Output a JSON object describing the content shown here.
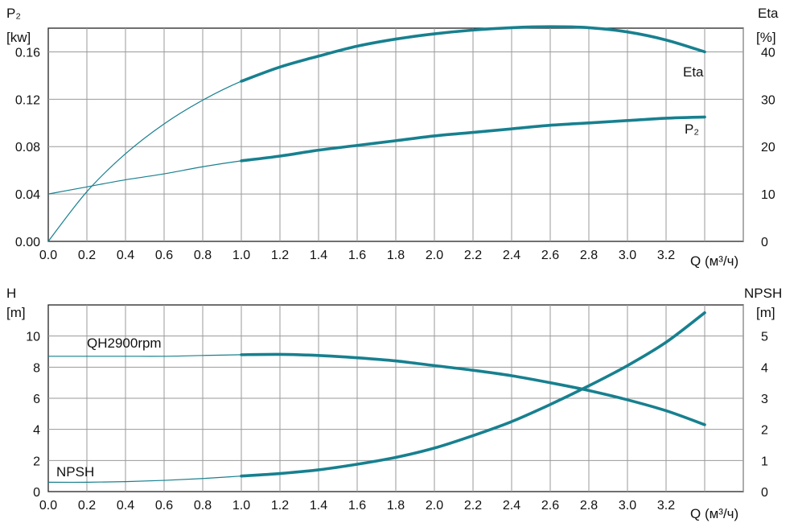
{
  "colors": {
    "curve": "#17808f",
    "grid": "#9a9a9a",
    "frame": "#222222"
  },
  "chart_data": [
    {
      "type": "line",
      "title": "",
      "xlabel": "Q (м³/ч)",
      "ylabel_left": "P₂ [kw]",
      "ylabel_left_parts": [
        "P₂",
        "[kw]"
      ],
      "ylabel_right": "Eta [%]",
      "ylabel_right_parts": [
        "Eta",
        "[%]"
      ],
      "xlim": [
        0,
        3.6
      ],
      "ylim_left": [
        0,
        0.18
      ],
      "ylim_right": [
        0,
        45
      ],
      "x_ticks": [
        "0.0",
        "0.2",
        "0.4",
        "0.6",
        "0.8",
        "1.0",
        "1.2",
        "1.4",
        "1.6",
        "1.8",
        "2.0",
        "2.2",
        "2.4",
        "2.6",
        "2.8",
        "3.0",
        "3.2"
      ],
      "y_left_ticks": [
        "0.00",
        "0.04",
        "0.08",
        "0.12",
        "0.16"
      ],
      "y_right_ticks": [
        "0",
        "10",
        "20",
        "30",
        "40"
      ],
      "grid": true,
      "series": [
        {
          "name": "Eta",
          "axis": "right",
          "bold_from": 1.0,
          "x": [
            0.0,
            0.2,
            0.4,
            0.6,
            0.8,
            1.0,
            1.2,
            1.4,
            1.6,
            1.8,
            2.0,
            2.2,
            2.4,
            2.6,
            2.8,
            3.0,
            3.2,
            3.4
          ],
          "y": [
            0,
            10.5,
            18.5,
            24.8,
            29.8,
            33.8,
            36.8,
            39.1,
            41.2,
            42.7,
            43.8,
            44.6,
            45.1,
            45.3,
            45.1,
            44.2,
            42.5,
            40
          ]
        },
        {
          "name": "P₂",
          "axis": "left",
          "bold_from": 1.0,
          "x": [
            0.0,
            0.2,
            0.4,
            0.6,
            0.8,
            1.0,
            1.2,
            1.4,
            1.6,
            1.8,
            2.0,
            2.2,
            2.4,
            2.6,
            2.8,
            3.0,
            3.2,
            3.4
          ],
          "y": [
            0.04,
            0.046,
            0.052,
            0.057,
            0.063,
            0.068,
            0.072,
            0.077,
            0.081,
            0.085,
            0.089,
            0.092,
            0.095,
            0.098,
            0.1,
            0.102,
            0.104,
            0.105
          ]
        }
      ]
    },
    {
      "type": "line",
      "title": "",
      "xlabel": "Q (м³/ч)",
      "ylabel_left": "H [m]",
      "ylabel_left_parts": [
        "H",
        "[m]"
      ],
      "ylabel_right": "NPSH [m]",
      "ylabel_right_parts": [
        "NPSH",
        "[m]"
      ],
      "xlim": [
        0,
        3.6
      ],
      "ylim_left": [
        0,
        12
      ],
      "ylim_right": [
        0,
        6
      ],
      "x_ticks": [
        "0.0",
        "0.2",
        "0.4",
        "0.6",
        "0.8",
        "1.0",
        "1.2",
        "1.4",
        "1.6",
        "1.8",
        "2.0",
        "2.2",
        "2.4",
        "2.6",
        "2.8",
        "3.0",
        "3.2"
      ],
      "y_left_ticks": [
        "0",
        "2",
        "4",
        "6",
        "8",
        "10"
      ],
      "y_right_ticks": [
        "0",
        "1",
        "2",
        "3",
        "4",
        "5"
      ],
      "grid": true,
      "series": [
        {
          "name": "QH2900rpm",
          "axis": "left",
          "bold_from": 1.0,
          "x": [
            0.0,
            0.2,
            0.4,
            0.6,
            0.8,
            1.0,
            1.2,
            1.4,
            1.6,
            1.8,
            2.0,
            2.2,
            2.4,
            2.6,
            2.8,
            3.0,
            3.2,
            3.4
          ],
          "y": [
            8.7,
            8.7,
            8.7,
            8.7,
            8.75,
            8.8,
            8.82,
            8.75,
            8.6,
            8.4,
            8.1,
            7.8,
            7.45,
            7.0,
            6.5,
            5.9,
            5.2,
            4.3
          ]
        },
        {
          "name": "NPSH",
          "axis": "right",
          "bold_from": 1.0,
          "x": [
            0.0,
            0.2,
            0.4,
            0.6,
            0.8,
            1.0,
            1.2,
            1.4,
            1.6,
            1.8,
            2.0,
            2.2,
            2.4,
            2.6,
            2.8,
            3.0,
            3.2,
            3.4
          ],
          "y": [
            0.3,
            0.3,
            0.32,
            0.36,
            0.42,
            0.5,
            0.58,
            0.7,
            0.88,
            1.1,
            1.4,
            1.8,
            2.25,
            2.8,
            3.4,
            4.05,
            4.8,
            5.75
          ]
        }
      ]
    }
  ]
}
